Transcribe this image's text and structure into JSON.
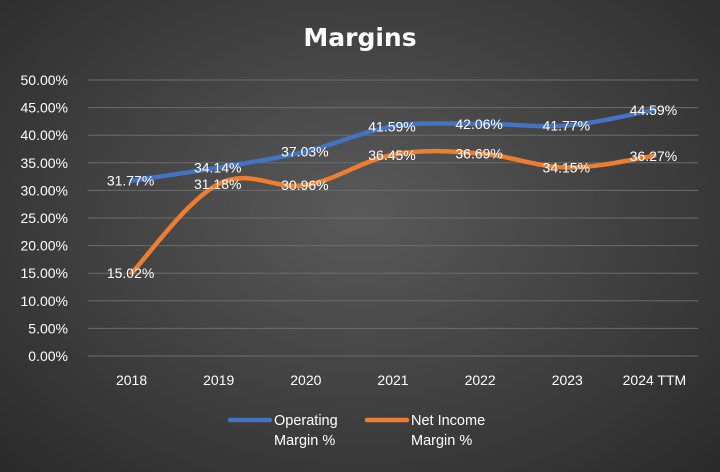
{
  "chart_data": {
    "type": "line",
    "title": "Margins",
    "categories": [
      "2018",
      "2019",
      "2020",
      "2021",
      "2022",
      "2023",
      "2024 TTM"
    ],
    "ylim": [
      0,
      50
    ],
    "ytick_labels": [
      "0.00%",
      "5.00%",
      "10.00%",
      "15.00%",
      "20.00%",
      "25.00%",
      "30.00%",
      "35.00%",
      "40.00%",
      "45.00%",
      "50.00%"
    ],
    "grid": true,
    "legend_position": "bottom",
    "series": [
      {
        "name": "Operating Margin %",
        "legend_lines": [
          "Operating",
          "Margin %"
        ],
        "color": "#4472C4",
        "values": [
          31.77,
          34.14,
          37.03,
          41.59,
          42.06,
          41.77,
          44.59
        ],
        "labels": [
          "31.77%",
          "34.14%",
          "37.03%",
          "41.59%",
          "42.06%",
          "41.77%",
          "44.59%"
        ]
      },
      {
        "name": "Net Income Margin %",
        "legend_lines": [
          "Net Income",
          "Margin %"
        ],
        "color": "#ED7D31",
        "values": [
          15.02,
          31.18,
          30.96,
          36.45,
          36.69,
          34.15,
          36.27
        ],
        "labels": [
          "15.02%",
          "31.18%",
          "30.96%",
          "36.45%",
          "36.69%",
          "34.15%",
          "36.27%"
        ]
      }
    ]
  }
}
